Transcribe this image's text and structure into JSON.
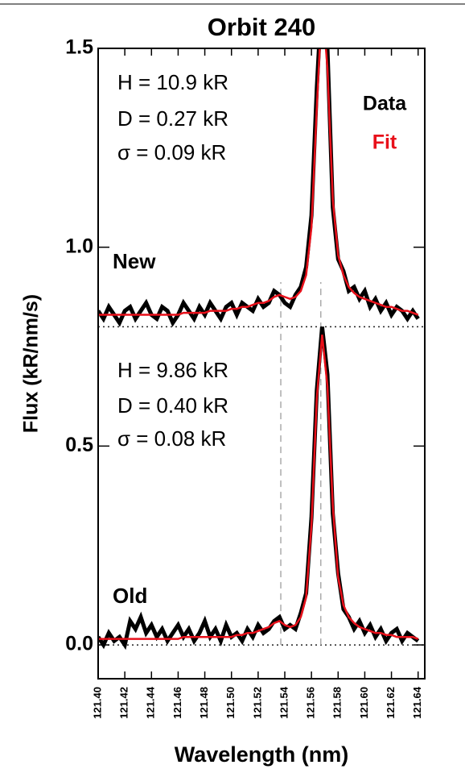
{
  "chart_data": {
    "type": "line",
    "title": "Orbit 240",
    "x_label": "Wavelength (nm)",
    "y_label": "Flux (kR/nm/s)",
    "xlim": [
      121.4,
      121.645
    ],
    "ylim": [
      -0.085,
      1.5
    ],
    "xticks": [
      {
        "value": 121.4,
        "label": "121.40"
      },
      {
        "value": 121.42,
        "label": "121.42"
      },
      {
        "value": 121.44,
        "label": "121.44"
      },
      {
        "value": 121.46,
        "label": "121.46"
      },
      {
        "value": 121.48,
        "label": "121.48"
      },
      {
        "value": 121.5,
        "label": "121.50"
      },
      {
        "value": 121.52,
        "label": "121.52"
      },
      {
        "value": 121.54,
        "label": "121.54"
      },
      {
        "value": 121.56,
        "label": "121.56"
      },
      {
        "value": 121.58,
        "label": "121.58"
      },
      {
        "value": 121.6,
        "label": "121.60"
      },
      {
        "value": 121.62,
        "label": "121.62"
      },
      {
        "value": 121.64,
        "label": "121.64"
      }
    ],
    "yticks": [
      {
        "value": 0,
        "label": "0.0"
      },
      0.5,
      {
        "value": 1,
        "label": "1.0"
      },
      {
        "value": 1.5,
        "label": "1.5"
      }
    ],
    "x": [
      121.4,
      121.404,
      121.408,
      121.412,
      121.416,
      121.42,
      121.424,
      121.428,
      121.432,
      121.436,
      121.44,
      121.444,
      121.448,
      121.452,
      121.456,
      121.46,
      121.464,
      121.468,
      121.472,
      121.476,
      121.48,
      121.484,
      121.488,
      121.492,
      121.496,
      121.5,
      121.504,
      121.508,
      121.512,
      121.516,
      121.52,
      121.524,
      121.528,
      121.532,
      121.536,
      121.54,
      121.544,
      121.548,
      121.552,
      121.556,
      121.56,
      121.564,
      121.568,
      121.572,
      121.576,
      121.58,
      121.584,
      121.588,
      121.592,
      121.596,
      121.6,
      121.604,
      121.608,
      121.612,
      121.616,
      121.62,
      121.624,
      121.628,
      121.632,
      121.636,
      121.64
    ],
    "series": [
      {
        "name": "Data",
        "color": "#000000",
        "values": [
          0.84,
          0.82,
          0.85,
          0.83,
          0.81,
          0.84,
          0.85,
          0.82,
          0.84,
          0.86,
          0.83,
          0.82,
          0.85,
          0.84,
          0.81,
          0.83,
          0.86,
          0.84,
          0.82,
          0.85,
          0.83,
          0.86,
          0.84,
          0.82,
          0.85,
          0.86,
          0.83,
          0.86,
          0.85,
          0.84,
          0.87,
          0.85,
          0.86,
          0.89,
          0.88,
          0.86,
          0.85,
          0.88,
          0.9,
          0.95,
          1.08,
          1.4,
          1.65,
          1.5,
          1.1,
          0.97,
          0.94,
          0.89,
          0.9,
          0.87,
          0.89,
          0.85,
          0.87,
          0.84,
          0.86,
          0.83,
          0.85,
          0.84,
          0.82,
          0.84,
          0.82
        ]
      },
      {
        "name": "Fit",
        "color": "#e8101a",
        "values": [
          0.83,
          0.83,
          0.83,
          0.83,
          0.83,
          0.83,
          0.83,
          0.83,
          0.83,
          0.83,
          0.83,
          0.83,
          0.83,
          0.83,
          0.83,
          0.83,
          0.835,
          0.835,
          0.835,
          0.835,
          0.835,
          0.84,
          0.84,
          0.84,
          0.84,
          0.845,
          0.845,
          0.85,
          0.85,
          0.855,
          0.86,
          0.86,
          0.865,
          0.875,
          0.88,
          0.875,
          0.87,
          0.875,
          0.89,
          0.93,
          1.05,
          1.35,
          1.62,
          1.45,
          1.12,
          0.98,
          0.93,
          0.9,
          0.885,
          0.875,
          0.87,
          0.865,
          0.86,
          0.855,
          0.85,
          0.85,
          0.845,
          0.84,
          0.84,
          0.835,
          0.83
        ]
      },
      {
        "color": "#000000",
        "values": [
          0.02,
          0.0,
          0.03,
          0.01,
          0.02,
          0.0,
          0.06,
          0.04,
          0.07,
          0.03,
          0.05,
          0.02,
          0.04,
          0.01,
          0.03,
          0.05,
          0.02,
          0.04,
          0.01,
          0.03,
          0.06,
          0.02,
          0.04,
          0.01,
          0.05,
          0.02,
          0.03,
          0.01,
          0.04,
          0.02,
          0.05,
          0.03,
          0.04,
          0.06,
          0.07,
          0.04,
          0.05,
          0.04,
          0.08,
          0.13,
          0.32,
          0.64,
          0.8,
          0.68,
          0.33,
          0.18,
          0.09,
          0.07,
          0.04,
          0.06,
          0.03,
          0.05,
          0.02,
          0.04,
          0.01,
          0.03,
          0.04,
          0.01,
          0.03,
          0.02,
          0.01
        ]
      },
      {
        "color": "#e8101a",
        "values": [
          0.015,
          0.015,
          0.015,
          0.015,
          0.015,
          0.015,
          0.015,
          0.015,
          0.015,
          0.015,
          0.015,
          0.015,
          0.015,
          0.015,
          0.015,
          0.015,
          0.02,
          0.02,
          0.02,
          0.02,
          0.02,
          0.02,
          0.02,
          0.02,
          0.02,
          0.02,
          0.025,
          0.025,
          0.03,
          0.03,
          0.035,
          0.04,
          0.045,
          0.055,
          0.06,
          0.05,
          0.045,
          0.05,
          0.07,
          0.12,
          0.3,
          0.62,
          0.78,
          0.65,
          0.35,
          0.17,
          0.1,
          0.07,
          0.055,
          0.045,
          0.04,
          0.035,
          0.03,
          0.03,
          0.025,
          0.025,
          0.02,
          0.02,
          0.02,
          0.02,
          0.015
        ]
      }
    ],
    "baselines": [
      0.8,
      0
    ],
    "marker_lines": [
      121.537,
      121.567
    ],
    "panel_labels": [
      "New",
      "Old"
    ],
    "annotations": [
      "H = 10.9 kR",
      "D = 0.27 kR",
      "σ = 0.09 kR",
      "H = 9.86 kR",
      "D = 0.40 kR",
      "σ = 0.08 kR"
    ]
  }
}
